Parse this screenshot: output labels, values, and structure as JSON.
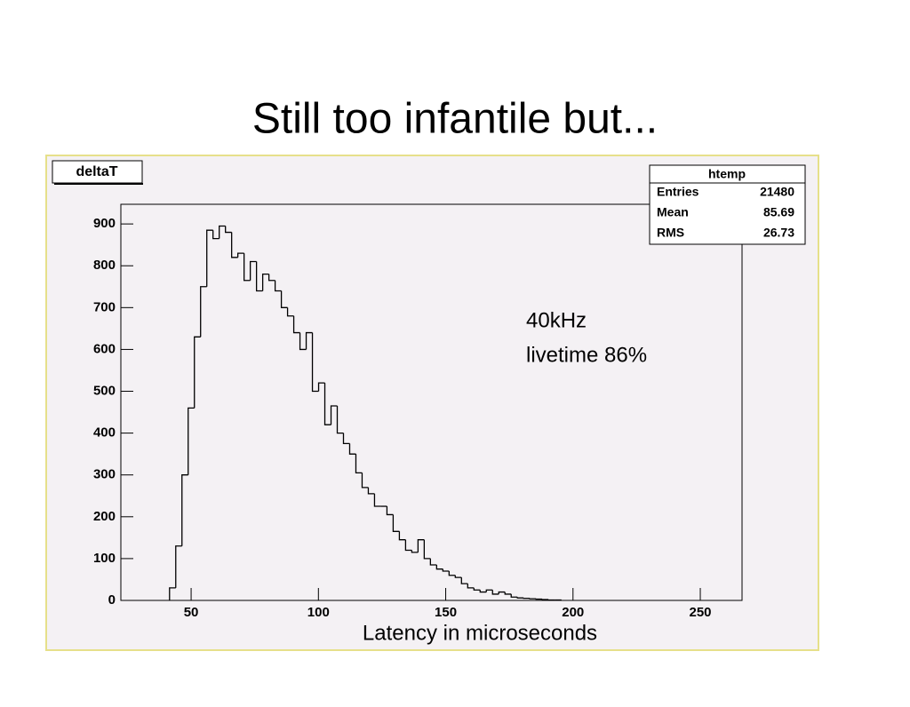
{
  "title": "Still too infantile but...",
  "chart_data": {
    "type": "histogram",
    "title": "deltaT",
    "x_label": "Latency in microseconds",
    "annotations": [
      "40kHz",
      "livetime 86%"
    ],
    "stats": {
      "title": "htemp",
      "rows": [
        [
          "Entries",
          21480
        ],
        [
          "Mean",
          85.69
        ],
        [
          "RMS",
          26.73
        ]
      ]
    },
    "color": "#000000",
    "bins": [
      41.52,
      43.96,
      46.4,
      48.84,
      51.28,
      53.72,
      56.16,
      58.6,
      61.04,
      63.48,
      65.92,
      68.36,
      70.8,
      73.24,
      75.68,
      78.12,
      80.56,
      83,
      85.44,
      87.88,
      90.32,
      92.76,
      95.2,
      97.64,
      100.08,
      102.52,
      104.96,
      107.4,
      109.84,
      112.28,
      114.72,
      117.16,
      119.6,
      122.04,
      124.48,
      126.92,
      129.36,
      131.8,
      134.24,
      136.68,
      139.12,
      141.56,
      144,
      146.44,
      148.88,
      151.32,
      153.76,
      156.2,
      158.64,
      161.08,
      163.52,
      165.96,
      168.4,
      170.84,
      173.28,
      175.72,
      178.16,
      180.6,
      183.04,
      185.48,
      187.92,
      190.36,
      192.8,
      195.24
    ],
    "values": [
      30,
      130,
      300,
      460,
      630,
      750,
      885,
      865,
      895,
      880,
      820,
      830,
      765,
      810,
      740,
      780,
      765,
      740,
      700,
      680,
      640,
      600,
      640,
      500,
      520,
      420,
      465,
      400,
      375,
      350,
      305,
      270,
      255,
      225,
      225,
      205,
      165,
      145,
      120,
      115,
      145,
      100,
      85,
      75,
      70,
      60,
      55,
      40,
      30,
      25,
      20,
      25,
      15,
      20,
      15,
      8,
      6,
      5,
      4,
      3,
      2,
      1,
      1
    ],
    "xlim": [
      22.4,
      266.4
    ],
    "ylim": [
      0,
      947
    ],
    "xticks": [
      50,
      100,
      150,
      200,
      250
    ],
    "yticks": [
      0,
      100,
      200,
      300,
      400,
      500,
      600,
      700,
      800,
      900
    ]
  }
}
